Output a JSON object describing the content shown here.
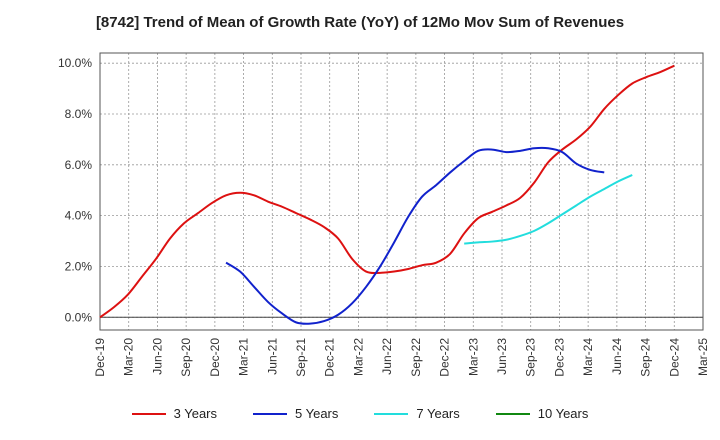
{
  "chart_data": {
    "type": "line",
    "title": "[8742]  Trend of Mean of Growth Rate (YoY) of 12Mo Mov Sum of Revenues",
    "xlabel": "",
    "ylabel": "",
    "x_ticks": [
      "Dec-19",
      "Mar-20",
      "Jun-20",
      "Sep-20",
      "Dec-20",
      "Mar-21",
      "Jun-21",
      "Sep-21",
      "Dec-21",
      "Mar-22",
      "Jun-22",
      "Sep-22",
      "Dec-22",
      "Mar-23",
      "Jun-23",
      "Sep-23",
      "Dec-23",
      "Mar-24",
      "Jun-24",
      "Sep-24",
      "Dec-24",
      "Mar-25"
    ],
    "y_ticks": [
      "0.0%",
      "2.0%",
      "4.0%",
      "6.0%",
      "8.0%",
      "10.0%"
    ],
    "ylim": [
      -0.5,
      10.4
    ],
    "grid": true,
    "legend_position": "bottom",
    "series": [
      {
        "name": "3 Years",
        "color": "#dd1111",
        "points": [
          [
            0,
            0.0
          ],
          [
            1,
            0.4
          ],
          [
            2,
            0.9
          ],
          [
            3,
            1.6
          ],
          [
            4,
            2.3
          ],
          [
            5,
            3.1
          ],
          [
            6,
            3.7
          ],
          [
            7,
            4.1
          ],
          [
            8,
            4.5
          ],
          [
            9,
            4.8
          ],
          [
            10,
            4.9
          ],
          [
            11,
            4.8
          ],
          [
            12,
            4.55
          ],
          [
            13,
            4.35
          ],
          [
            14,
            4.1
          ],
          [
            15,
            3.85
          ],
          [
            16,
            3.55
          ],
          [
            17,
            3.1
          ],
          [
            18,
            2.3
          ],
          [
            19,
            1.8
          ],
          [
            20,
            1.75
          ],
          [
            21,
            1.8
          ],
          [
            22,
            1.9
          ],
          [
            23,
            2.05
          ],
          [
            24,
            2.15
          ],
          [
            25,
            2.5
          ],
          [
            26,
            3.3
          ],
          [
            27,
            3.9
          ],
          [
            28,
            4.15
          ],
          [
            29,
            4.4
          ],
          [
            30,
            4.7
          ],
          [
            31,
            5.3
          ],
          [
            32,
            6.1
          ],
          [
            33,
            6.6
          ],
          [
            34,
            7.0
          ],
          [
            35,
            7.5
          ],
          [
            36,
            8.2
          ],
          [
            37,
            8.75
          ],
          [
            38,
            9.2
          ],
          [
            39,
            9.45
          ],
          [
            40,
            9.65
          ],
          [
            41,
            9.9
          ]
        ]
      },
      {
        "name": "5 Years",
        "color": "#1122cc",
        "points": [
          [
            9,
            2.15
          ],
          [
            10,
            1.8
          ],
          [
            11,
            1.2
          ],
          [
            12,
            0.6
          ],
          [
            13,
            0.15
          ],
          [
            14,
            -0.2
          ],
          [
            15,
            -0.25
          ],
          [
            16,
            -0.15
          ],
          [
            17,
            0.1
          ],
          [
            18,
            0.55
          ],
          [
            19,
            1.2
          ],
          [
            20,
            2.0
          ],
          [
            21,
            2.95
          ],
          [
            22,
            3.95
          ],
          [
            23,
            4.75
          ],
          [
            24,
            5.2
          ],
          [
            25,
            5.7
          ],
          [
            26,
            6.15
          ],
          [
            27,
            6.55
          ],
          [
            28,
            6.6
          ],
          [
            29,
            6.5
          ],
          [
            30,
            6.55
          ],
          [
            31,
            6.65
          ],
          [
            32,
            6.65
          ],
          [
            33,
            6.5
          ],
          [
            34,
            6.05
          ],
          [
            35,
            5.8
          ],
          [
            36,
            5.7
          ]
        ]
      },
      {
        "name": "7 Years",
        "color": "#22dddd",
        "points": [
          [
            26,
            2.9
          ],
          [
            27,
            2.95
          ],
          [
            28,
            2.98
          ],
          [
            29,
            3.05
          ],
          [
            30,
            3.2
          ],
          [
            31,
            3.4
          ],
          [
            32,
            3.7
          ],
          [
            33,
            4.05
          ],
          [
            34,
            4.4
          ],
          [
            35,
            4.75
          ],
          [
            36,
            5.05
          ],
          [
            37,
            5.35
          ],
          [
            38,
            5.6
          ]
        ]
      },
      {
        "name": "10 Years",
        "color": "#118811",
        "points": []
      }
    ]
  }
}
